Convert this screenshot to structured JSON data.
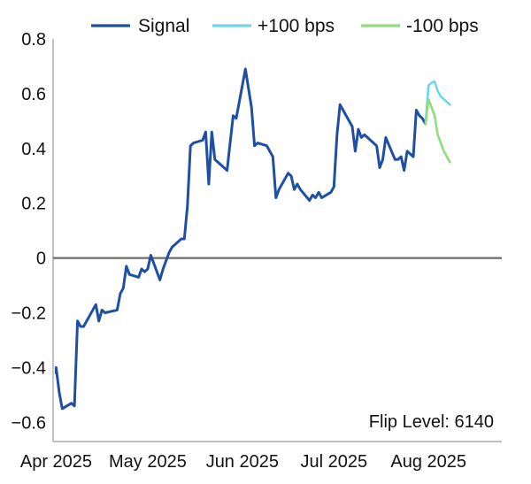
{
  "chart_data": {
    "type": "line",
    "title": "",
    "xlabel": "",
    "ylabel": "",
    "ylim": [
      -0.67,
      0.8
    ],
    "yticks": [
      -0.6,
      -0.4,
      -0.2,
      0,
      0.2,
      0.4,
      0.6,
      0.8
    ],
    "ytick_labels": [
      "−0.6",
      "−0.4",
      "−0.2",
      "0",
      "0.2",
      "0.4",
      "0.6",
      "0.8"
    ],
    "xlim": [
      "2025-03-31",
      "2025-08-25"
    ],
    "xticks": [
      "2025-04-01",
      "2025-05-01",
      "2025-06-01",
      "2025-07-01",
      "2025-08-01"
    ],
    "xtick_labels": [
      "Apr 2025",
      "May 2025",
      "Jun 2025",
      "Jul 2025",
      "Aug 2025"
    ],
    "legend_position": "top",
    "grid": false,
    "zero_line": true,
    "annotation": "Flip Level: 6140",
    "series": [
      {
        "name": "Signal",
        "color": "#1f4fa3",
        "points": [
          [
            "2025-04-01",
            -0.42
          ],
          [
            "2025-04-01",
            -0.4
          ],
          [
            "2025-04-02",
            -0.49
          ],
          [
            "2025-04-03",
            -0.55
          ],
          [
            "2025-04-06",
            -0.53
          ],
          [
            "2025-04-07",
            -0.54
          ],
          [
            "2025-04-08",
            -0.23
          ],
          [
            "2025-04-09",
            -0.25
          ],
          [
            "2025-04-10",
            -0.25
          ],
          [
            "2025-04-14",
            -0.17
          ],
          [
            "2025-04-15",
            -0.23
          ],
          [
            "2025-04-16",
            -0.19
          ],
          [
            "2025-04-17",
            -0.2
          ],
          [
            "2025-04-21",
            -0.19
          ],
          [
            "2025-04-22",
            -0.13
          ],
          [
            "2025-04-23",
            -0.11
          ],
          [
            "2025-04-24",
            -0.03
          ],
          [
            "2025-04-25",
            -0.06
          ],
          [
            "2025-04-28",
            -0.07
          ],
          [
            "2025-04-29",
            -0.04
          ],
          [
            "2025-04-30",
            -0.05
          ],
          [
            "2025-05-01",
            -0.04
          ],
          [
            "2025-05-02",
            0.01
          ],
          [
            "2025-05-05",
            -0.08
          ],
          [
            "2025-05-06",
            -0.04
          ],
          [
            "2025-05-07",
            -0.01
          ],
          [
            "2025-05-08",
            0.02
          ],
          [
            "2025-05-09",
            0.04
          ],
          [
            "2025-05-12",
            0.07
          ],
          [
            "2025-05-13",
            0.07
          ],
          [
            "2025-05-14",
            0.19
          ],
          [
            "2025-05-15",
            0.41
          ],
          [
            "2025-05-16",
            0.42
          ],
          [
            "2025-05-19",
            0.43
          ],
          [
            "2025-05-20",
            0.46
          ],
          [
            "2025-05-21",
            0.27
          ],
          [
            "2025-05-22",
            0.46
          ],
          [
            "2025-05-23",
            0.36
          ],
          [
            "2025-05-27",
            0.32
          ],
          [
            "2025-05-28",
            0.42
          ],
          [
            "2025-05-29",
            0.52
          ],
          [
            "2025-05-30",
            0.51
          ],
          [
            "2025-06-02",
            0.69
          ],
          [
            "2025-06-04",
            0.55
          ],
          [
            "2025-06-05",
            0.41
          ],
          [
            "2025-06-06",
            0.42
          ],
          [
            "2025-06-09",
            0.41
          ],
          [
            "2025-06-11",
            0.37
          ],
          [
            "2025-06-12",
            0.22
          ],
          [
            "2025-06-13",
            0.25
          ],
          [
            "2025-06-16",
            0.31
          ],
          [
            "2025-06-17",
            0.3
          ],
          [
            "2025-06-18",
            0.25
          ],
          [
            "2025-06-19",
            0.27
          ],
          [
            "2025-06-20",
            0.25
          ],
          [
            "2025-06-23",
            0.21
          ],
          [
            "2025-06-24",
            0.23
          ],
          [
            "2025-06-25",
            0.22
          ],
          [
            "2025-06-26",
            0.24
          ],
          [
            "2025-06-27",
            0.22
          ],
          [
            "2025-06-30",
            0.24
          ],
          [
            "2025-07-01",
            0.26
          ],
          [
            "2025-07-02",
            0.45
          ],
          [
            "2025-07-03",
            0.56
          ],
          [
            "2025-07-07",
            0.48
          ],
          [
            "2025-07-08",
            0.39
          ],
          [
            "2025-07-09",
            0.47
          ],
          [
            "2025-07-10",
            0.44
          ],
          [
            "2025-07-11",
            0.45
          ],
          [
            "2025-07-14",
            0.42
          ],
          [
            "2025-07-15",
            0.41
          ],
          [
            "2025-07-16",
            0.33
          ],
          [
            "2025-07-17",
            0.36
          ],
          [
            "2025-07-18",
            0.44
          ],
          [
            "2025-07-21",
            0.36
          ],
          [
            "2025-07-22",
            0.36
          ],
          [
            "2025-07-23",
            0.37
          ],
          [
            "2025-07-24",
            0.32
          ],
          [
            "2025-07-25",
            0.39
          ],
          [
            "2025-07-27",
            0.37
          ],
          [
            "2025-07-28",
            0.54
          ],
          [
            "2025-07-29",
            0.52
          ],
          [
            "2025-07-30",
            0.51
          ],
          [
            "2025-07-31",
            0.49
          ]
        ]
      },
      {
        "name": "+100 bps",
        "color": "#6fd6ea",
        "points": [
          [
            "2025-07-31",
            0.49
          ],
          [
            "2025-08-01",
            0.63
          ],
          [
            "2025-08-02",
            0.64
          ],
          [
            "2025-08-03",
            0.645
          ],
          [
            "2025-08-04",
            0.61
          ],
          [
            "2025-08-05",
            0.59
          ],
          [
            "2025-08-07",
            0.57
          ],
          [
            "2025-08-08",
            0.56
          ]
        ]
      },
      {
        "name": "-100 bps",
        "color": "#90dd7b",
        "points": [
          [
            "2025-07-31",
            0.49
          ],
          [
            "2025-08-01",
            0.58
          ],
          [
            "2025-08-03",
            0.52
          ],
          [
            "2025-08-04",
            0.45
          ],
          [
            "2025-08-06",
            0.39
          ],
          [
            "2025-08-08",
            0.35
          ]
        ]
      }
    ]
  }
}
